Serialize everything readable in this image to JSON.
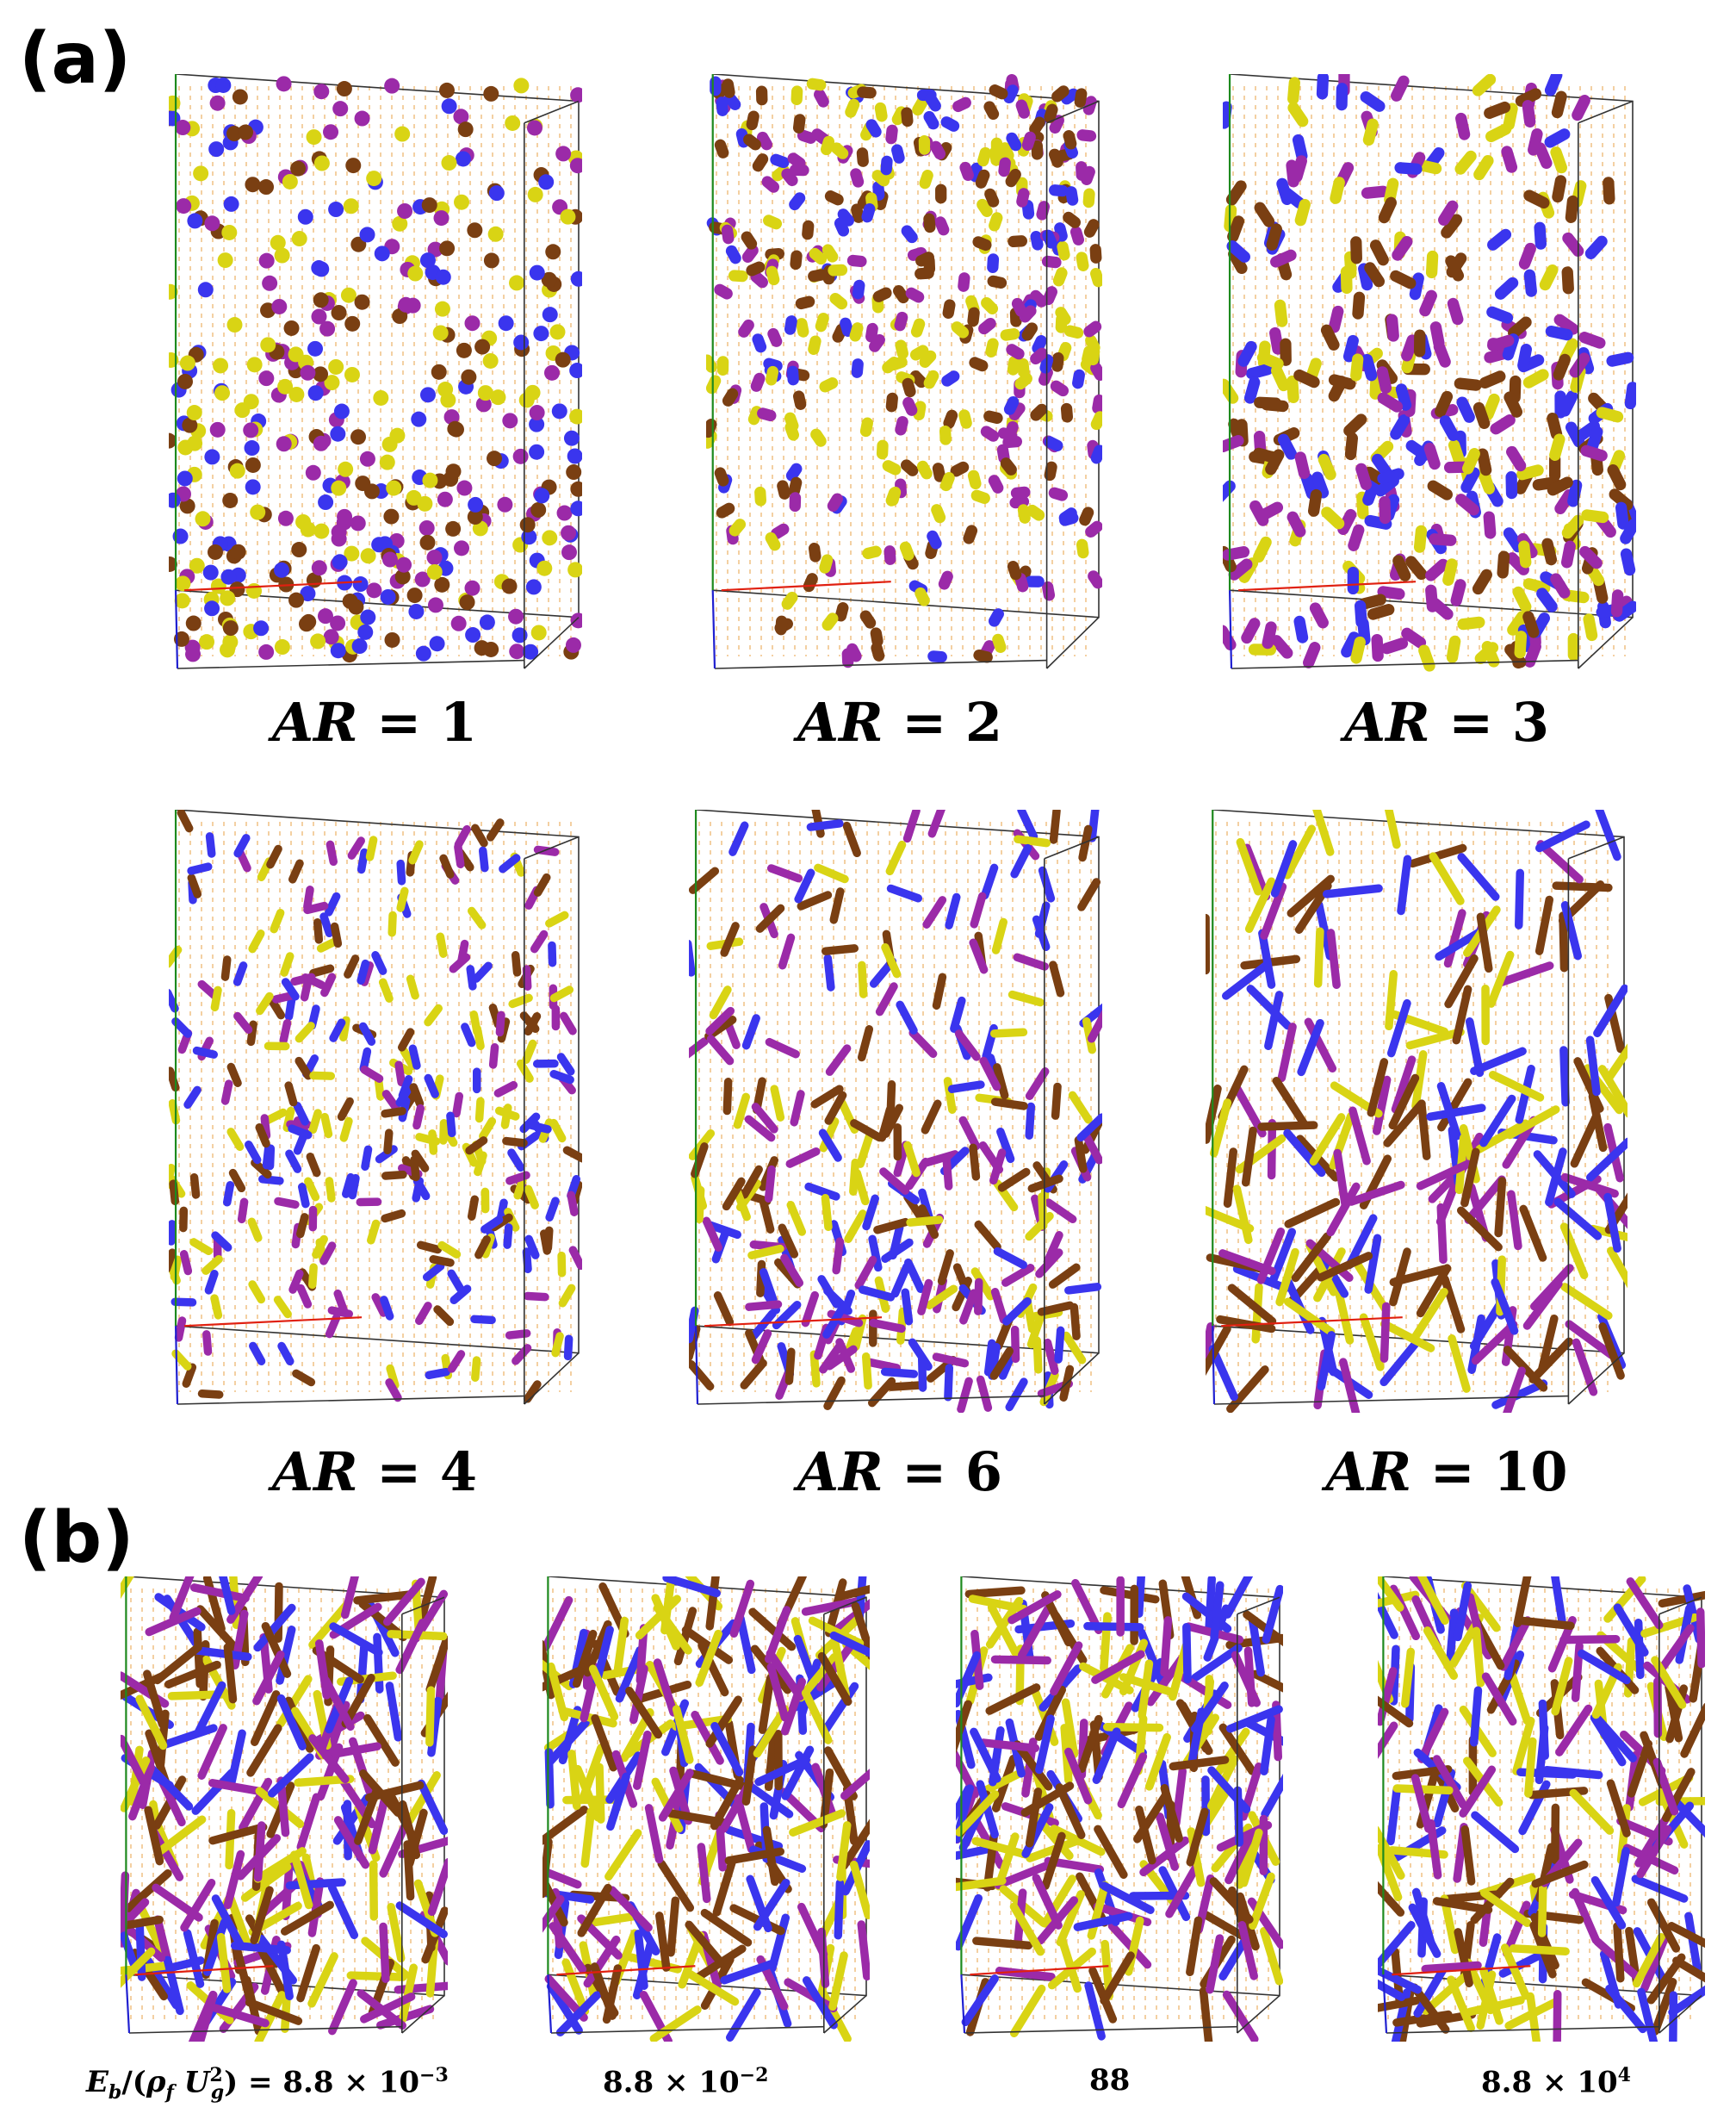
{
  "panel_a": {
    "letter": "(a)",
    "boxes": [
      {
        "ar_var": "AR",
        "ar_eq": "=",
        "ar_value": "1",
        "seg": 1,
        "count": 420,
        "density": "lower-dense"
      },
      {
        "ar_var": "AR",
        "ar_eq": "=",
        "ar_value": "2",
        "seg": 2,
        "count": 380,
        "density": "upper-dense"
      },
      {
        "ar_var": "AR",
        "ar_eq": "=",
        "ar_value": "3",
        "seg": 3,
        "count": 330,
        "density": "lower-dense"
      },
      {
        "ar_var": "AR",
        "ar_eq": "=",
        "ar_value": "4",
        "seg": 4,
        "count": 300,
        "density": "middle-dense"
      },
      {
        "ar_var": "AR",
        "ar_eq": "=",
        "ar_value": "6",
        "seg": 6,
        "count": 260,
        "density": "lower-dense"
      },
      {
        "ar_var": "AR",
        "ar_eq": "=",
        "ar_value": "10",
        "seg": 10,
        "count": 190,
        "density": "lower-dense"
      }
    ]
  },
  "panel_b": {
    "letter": "(b)",
    "boxes": [
      {
        "label_prefix": "E_b/(ρ_f U_g^2) = ",
        "label_value": "8.8 × 10",
        "label_exp": "−3",
        "seg": 10,
        "count": 210
      },
      {
        "label_value": "8.8 × 10",
        "label_exp": "−2",
        "seg": 10,
        "count": 200
      },
      {
        "label_value": "88",
        "label_exp": "",
        "seg": 10,
        "count": 200
      },
      {
        "label_value": "8.8 × 10",
        "label_exp": "4",
        "seg": 10,
        "count": 190
      }
    ]
  },
  "particle_colors": [
    "#7a3f12",
    "#d9d414",
    "#9b2aa8",
    "#3a35ee"
  ],
  "box_edge_colors": {
    "frame": "#333333",
    "axis_x": "#e02010",
    "axis_y": "#1e8a1e",
    "axis_z": "#2020d0",
    "fluid_lines": "#e8a040"
  }
}
